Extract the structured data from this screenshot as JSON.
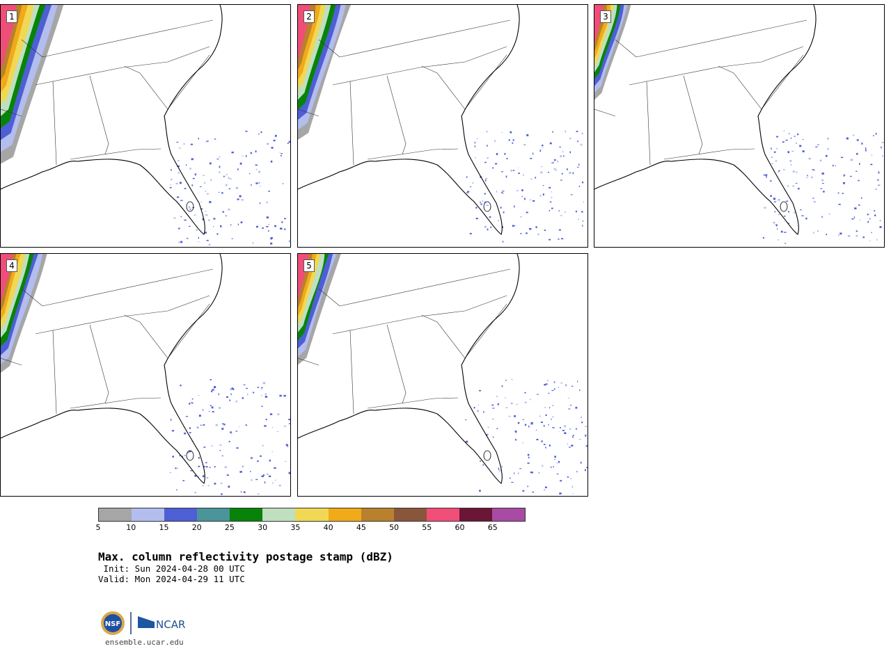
{
  "panels": [
    {
      "label": "1",
      "radar_extent": 0.95,
      "scatter_seed": 11
    },
    {
      "label": "2",
      "radar_extent": 0.8,
      "scatter_seed": 23
    },
    {
      "label": "3",
      "radar_extent": 0.55,
      "scatter_seed": 37
    },
    {
      "label": "4",
      "radar_extent": 0.7,
      "scatter_seed": 41
    },
    {
      "label": "5",
      "radar_extent": 0.65,
      "scatter_seed": 53
    }
  ],
  "colorbar": {
    "ticks": [
      "5",
      "10",
      "15",
      "20",
      "25",
      "30",
      "35",
      "40",
      "45",
      "50",
      "55",
      "60",
      "65"
    ],
    "colors": [
      "#a6a6a6",
      "#b3bdee",
      "#4e5fd5",
      "#4b9499",
      "#088309",
      "#bfdfbf",
      "#f0d854",
      "#f1aa18",
      "#b9802e",
      "#8a563b",
      "#f04e79",
      "#6b1636",
      "#a84ba4"
    ]
  },
  "title": "Max. column reflectivity postage stamp (dBZ)",
  "init_line": " Init: Sun 2024-04-28 00 UTC",
  "valid_line": "Valid: Mon 2024-04-29 11 UTC",
  "logos": {
    "nsf": "NSF",
    "ncar": "NCAR"
  },
  "site": "ensemble.ucar.edu"
}
